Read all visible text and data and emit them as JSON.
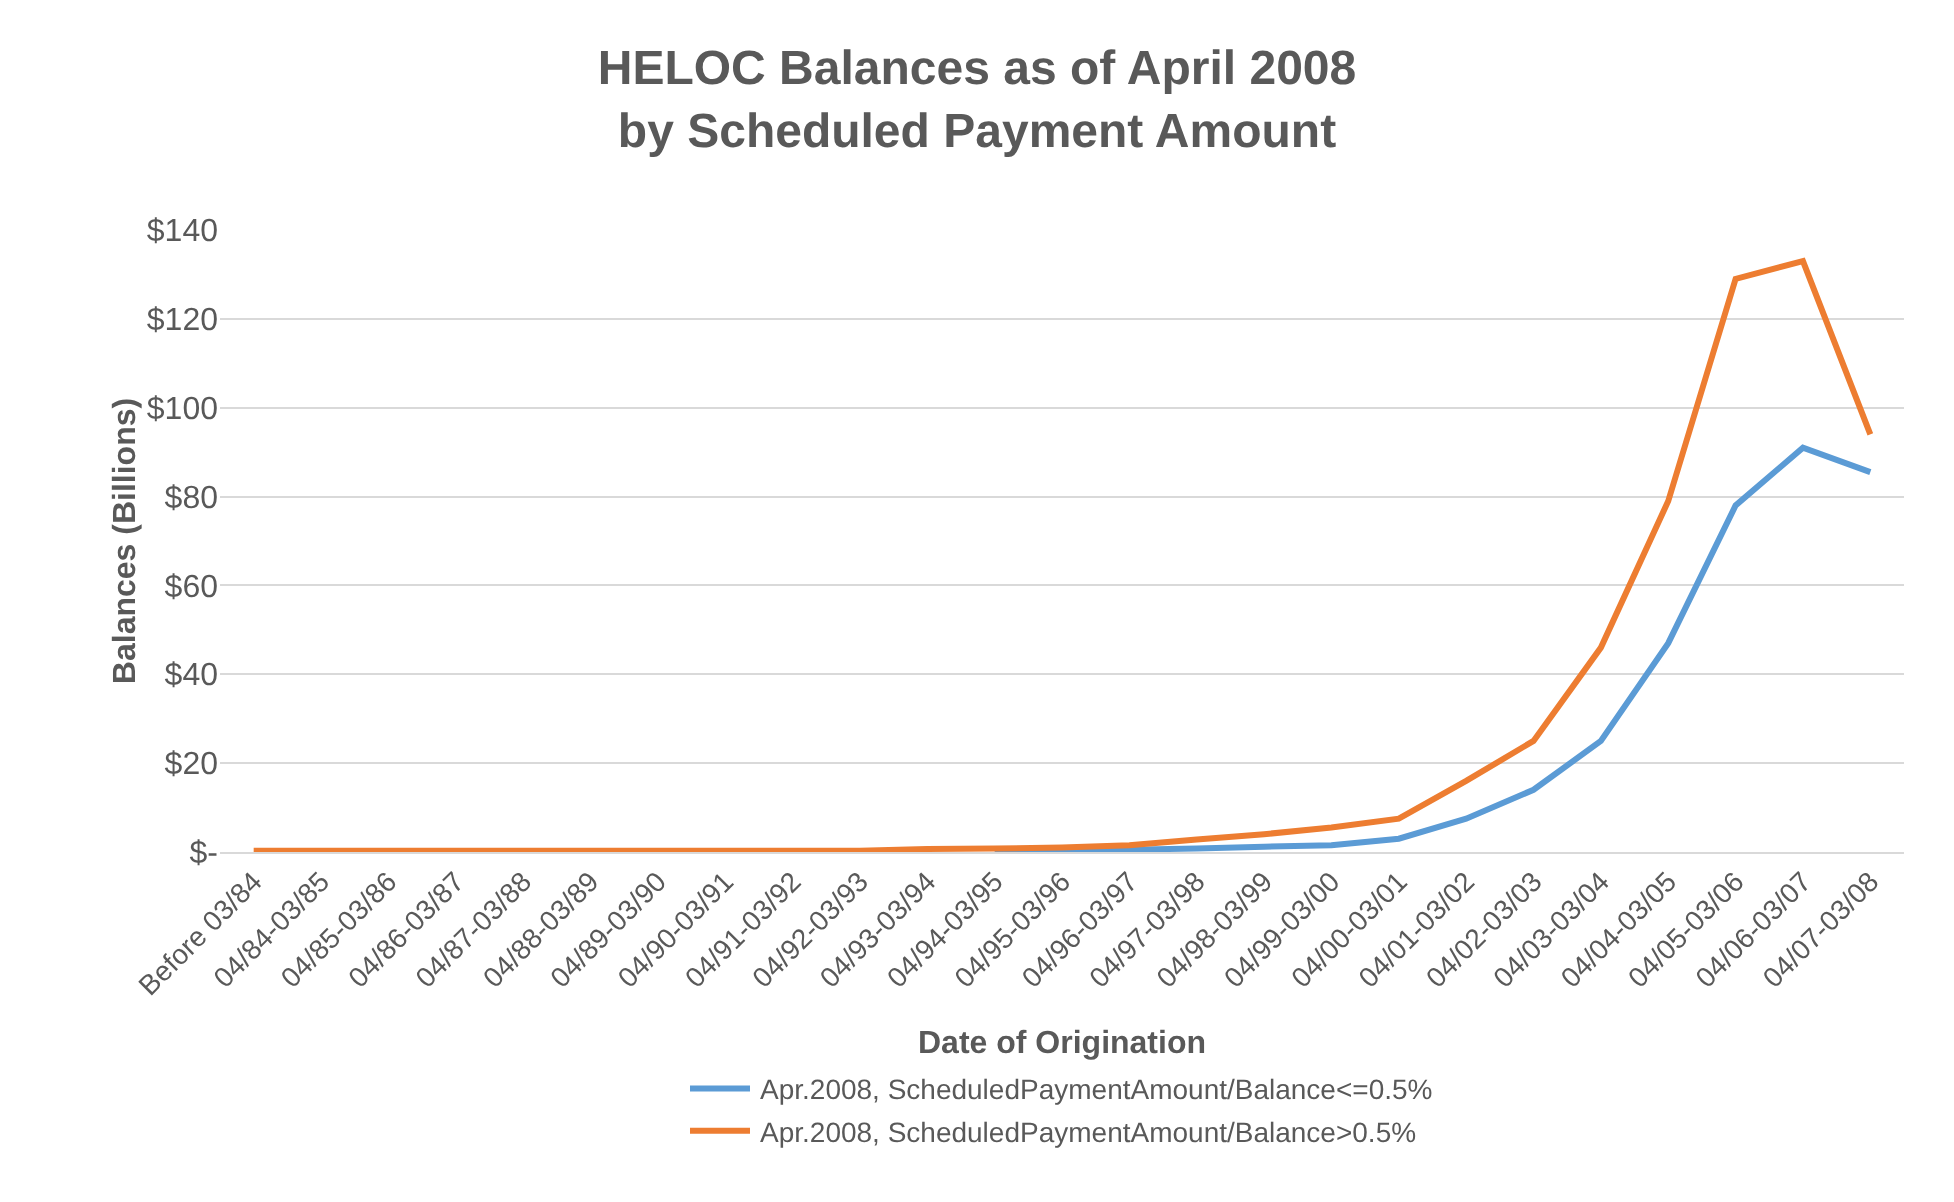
{
  "chart_data": {
    "type": "line",
    "title": "HELOC Balances as of April 2008\nby Scheduled Payment Amount",
    "xlabel": "Date of Origination",
    "ylabel": "Balances (Billions)",
    "categories": [
      "Before 03/84",
      "04/84-03/85",
      "04/85-03/86",
      "04/86-03/87",
      "04/87-03/88",
      "04/88-03/89",
      "04/89-03/90",
      "04/90-03/91",
      "04/91-03/92",
      "04/92-03/93",
      "04/93-03/94",
      "04/94-03/95",
      "04/95-03/96",
      "04/96-03/97",
      "04/97-03/98",
      "04/98-03/99",
      "04/99-03/00",
      "04/00-03/01",
      "04/01-03/02",
      "04/02-03/03",
      "04/03-03/04",
      "04/04-03/05",
      "04/05-03/06",
      "04/06-03/07",
      "04/07-03/08"
    ],
    "series": [
      {
        "name": "Apr.2008, ScheduledPaymentAmount/Balance<=0.5%",
        "color": "#5b9bd5",
        "values": [
          null,
          null,
          null,
          null,
          null,
          null,
          null,
          null,
          null,
          null,
          null,
          0.3,
          0.4,
          0.5,
          0.8,
          1.2,
          1.5,
          3,
          7.5,
          14,
          25,
          47,
          78,
          91,
          85.5
        ]
      },
      {
        "name": "Apr.2008, ScheduledPaymentAmount/Balance>0.5%",
        "color": "#ed7d31",
        "values": [
          0.3,
          0.3,
          0.3,
          0.3,
          0.3,
          0.3,
          0.3,
          0.3,
          0.3,
          0.3,
          0.7,
          0.8,
          1,
          1.5,
          2.8,
          4,
          5.5,
          7.5,
          16,
          25,
          46,
          79,
          129,
          133,
          94
        ]
      }
    ],
    "ylim": [
      0,
      140
    ],
    "yticks": [
      {
        "value": 0,
        "label": "$-"
      },
      {
        "value": 20,
        "label": "$20"
      },
      {
        "value": 40,
        "label": "$40"
      },
      {
        "value": 60,
        "label": "$60"
      },
      {
        "value": 80,
        "label": "$80"
      },
      {
        "value": 100,
        "label": "$100"
      },
      {
        "value": 120,
        "label": "$120"
      },
      {
        "value": 140,
        "label": "$140"
      }
    ],
    "grid": "y",
    "legend": "bottom",
    "marker": "none",
    "line_style": "solid"
  }
}
